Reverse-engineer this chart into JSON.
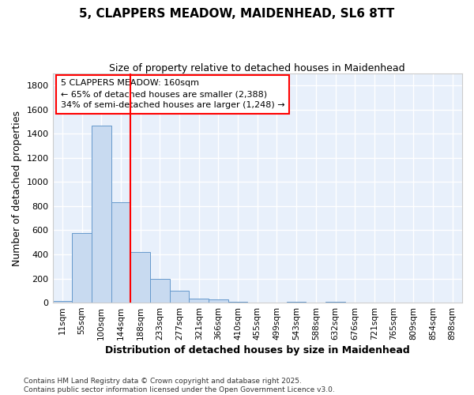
{
  "title_line1": "5, CLAPPERS MEADOW, MAIDENHEAD, SL6 8TT",
  "title_line2": "Size of property relative to detached houses in Maidenhead",
  "xlabel": "Distribution of detached houses by size in Maidenhead",
  "ylabel": "Number of detached properties",
  "bar_labels": [
    "11sqm",
    "55sqm",
    "100sqm",
    "144sqm",
    "188sqm",
    "233sqm",
    "277sqm",
    "321sqm",
    "366sqm",
    "410sqm",
    "455sqm",
    "499sqm",
    "543sqm",
    "588sqm",
    "632sqm",
    "676sqm",
    "721sqm",
    "765sqm",
    "809sqm",
    "854sqm",
    "898sqm"
  ],
  "bar_values": [
    15,
    580,
    1470,
    830,
    420,
    200,
    100,
    35,
    25,
    10,
    0,
    0,
    5,
    0,
    5,
    0,
    0,
    0,
    0,
    0,
    0
  ],
  "bar_color": "#c8daf0",
  "bar_edge_color": "#6699cc",
  "background_color": "#e8f0fb",
  "grid_color": "#ffffff",
  "vline_color": "red",
  "annotation_text": "5 CLAPPERS MEADOW: 160sqm\n← 65% of detached houses are smaller (2,388)\n34% of semi-detached houses are larger (1,248) →",
  "annotation_box_color": "white",
  "annotation_box_edge": "red",
  "ylim": [
    0,
    1900
  ],
  "yticks": [
    0,
    200,
    400,
    600,
    800,
    1000,
    1200,
    1400,
    1600,
    1800
  ],
  "footnote_line1": "Contains HM Land Registry data © Crown copyright and database right 2025.",
  "footnote_line2": "Contains public sector information licensed under the Open Government Licence v3.0."
}
